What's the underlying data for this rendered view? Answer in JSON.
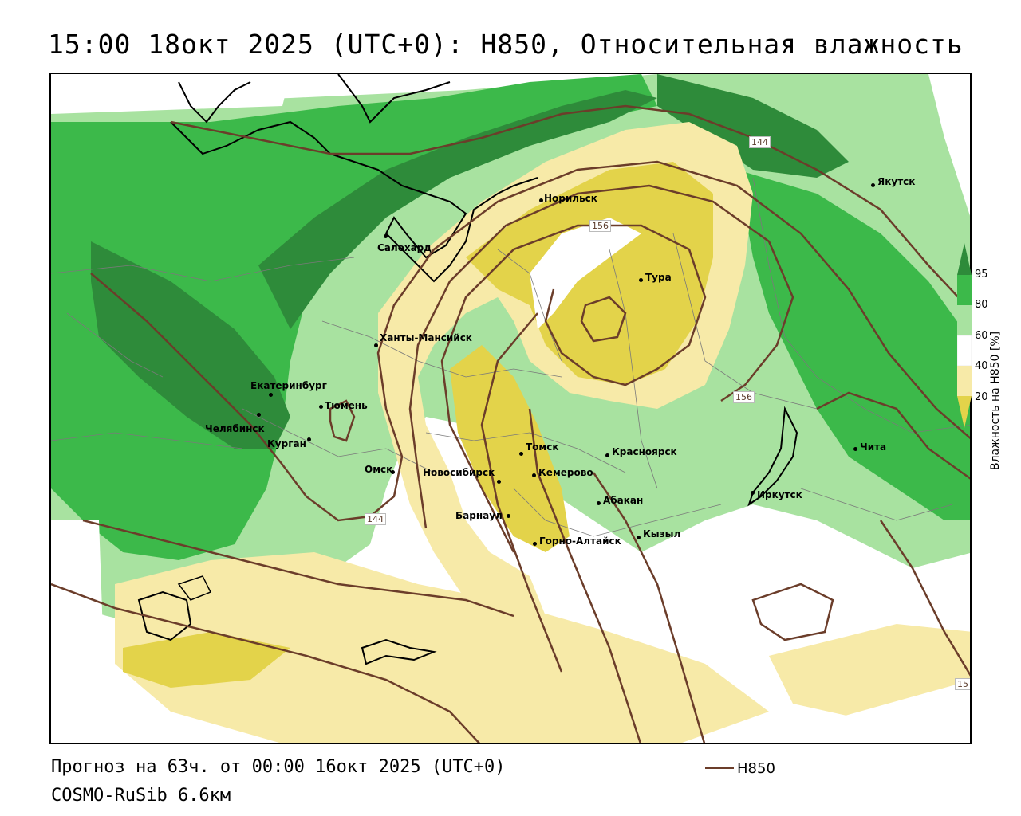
{
  "title": "15:00 18окт 2025 (UTC+0): H850, Относительная влажность",
  "footer": {
    "forecast": "Прогноз на 63ч. от 00:00 16окт 2025 (UTC+0)",
    "model": "COSMO-RuSib 6.6км",
    "legend_label": "H850"
  },
  "colorbar": {
    "title": "Влажность на H850 [%]",
    "ticks": [
      "95",
      "80",
      "60",
      "40",
      "20"
    ],
    "colors": {
      "c95": "#2e8b3a",
      "c80": "#3cb94a",
      "c60": "#a8e2a0",
      "c40": "#ffffff",
      "c20": "#f7eaa8",
      "c0": "#e3d34a"
    }
  },
  "contour_labels": [
    "144",
    "156",
    "156",
    "144",
    "15"
  ],
  "cities": [
    {
      "name": "Норильск"
    },
    {
      "name": "Якутск"
    },
    {
      "name": "Салехард"
    },
    {
      "name": "Тура"
    },
    {
      "name": "Ханты-Мансийск"
    },
    {
      "name": "Екатеринбург"
    },
    {
      "name": "Тюмень"
    },
    {
      "name": "Челябинск"
    },
    {
      "name": "Курган"
    },
    {
      "name": "Омск"
    },
    {
      "name": "Новосибирск"
    },
    {
      "name": "Томск"
    },
    {
      "name": "Кемерово"
    },
    {
      "name": "Красноярск"
    },
    {
      "name": "Абакан"
    },
    {
      "name": "Барнаул"
    },
    {
      "name": "Горно-Алтайск"
    },
    {
      "name": "Кызыл"
    },
    {
      "name": "Иркутск"
    },
    {
      "name": "Чита"
    }
  ]
}
